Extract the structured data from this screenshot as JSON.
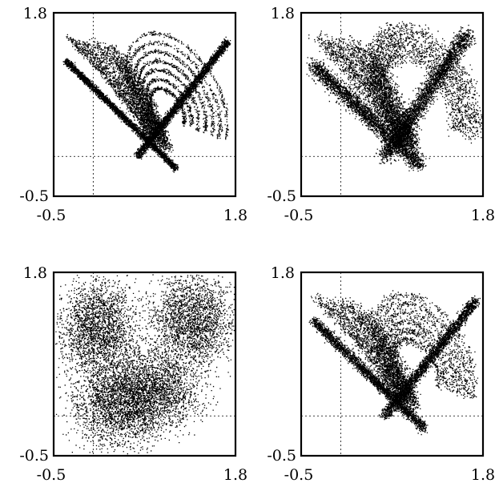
{
  "chart_data": [
    {
      "type": "scatter",
      "point_color": "#000000",
      "xlim": [
        -0.5,
        1.8
      ],
      "ylim": [
        -0.5,
        1.8
      ],
      "x_tick_labels": [
        "-0.5",
        "1.8"
      ],
      "y_tick_labels": [
        "-0.5",
        "1.8"
      ],
      "reference_lines": {
        "x": 0.0,
        "y": 0.0
      },
      "grid": false,
      "description": "tightly banded attractor",
      "structures": [
        {
          "kind": "diagonal_band",
          "from": [
            0.55,
            0.0
          ],
          "to": [
            1.7,
            1.45
          ]
        },
        {
          "kind": "loops",
          "center": [
            1.05,
            0.75
          ],
          "rx_start": 0.52,
          "ry_start": 0.88,
          "count": 7
        },
        {
          "kind": "fingers",
          "tops": [
            [
              -0.32,
              1.5
            ],
            [
              -0.15,
              1.45
            ],
            [
              0.02,
              1.45
            ],
            [
              0.18,
              1.4
            ],
            [
              0.32,
              1.25
            ]
          ],
          "bottom": [
            0.85,
            0.2
          ]
        },
        {
          "kind": "crossing_band",
          "from": [
            -0.35,
            1.2
          ],
          "to": [
            1.05,
            -0.15
          ]
        }
      ]
    },
    {
      "type": "scatter",
      "point_color": "#000000",
      "xlim": [
        -0.5,
        1.8
      ],
      "ylim": [
        -0.5,
        1.8
      ],
      "x_tick_labels": [
        "-0.5",
        "1.8"
      ],
      "y_tick_labels": [
        "-0.5",
        "1.8"
      ],
      "reference_lines": {
        "x": 0.0,
        "y": 0.0
      },
      "grid": false,
      "description": "moderately noisy attractor",
      "structures": [
        {
          "kind": "diagonal_band",
          "from": [
            0.55,
            0.0
          ],
          "to": [
            1.6,
            1.55
          ]
        },
        {
          "kind": "loops",
          "center": [
            1.05,
            0.8
          ],
          "rx_start": 0.55,
          "ry_start": 0.9,
          "count": 4
        },
        {
          "kind": "fingers",
          "tops": [
            [
              -0.3,
              1.5
            ],
            [
              -0.1,
              1.45
            ],
            [
              0.1,
              1.45
            ],
            [
              0.28,
              1.35
            ]
          ],
          "bottom": [
            0.85,
            0.2
          ]
        },
        {
          "kind": "crossing_band",
          "from": [
            -0.35,
            1.15
          ],
          "to": [
            1.0,
            -0.1
          ]
        }
      ]
    },
    {
      "type": "scatter",
      "point_color": "#000000",
      "xlim": [
        -0.5,
        1.8
      ],
      "ylim": [
        -0.5,
        1.8
      ],
      "x_tick_labels": [
        "-0.5",
        "1.8"
      ],
      "y_tick_labels": [
        "-0.5",
        "1.8"
      ],
      "reference_lines": {
        "x": 0.0,
        "y": 0.0
      },
      "grid": false,
      "description": "heavily noisy attractor",
      "structures": [
        {
          "kind": "blob",
          "center": [
            0.05,
            1.1
          ],
          "rx": 0.28,
          "ry": 0.42
        },
        {
          "kind": "blob",
          "center": [
            0.75,
            0.35
          ],
          "rx": 0.45,
          "ry": 0.35
        },
        {
          "kind": "blob",
          "center": [
            1.25,
            1.2
          ],
          "rx": 0.35,
          "ry": 0.4
        },
        {
          "kind": "blob",
          "center": [
            0.3,
            0.15
          ],
          "rx": 0.45,
          "ry": 0.35
        }
      ]
    },
    {
      "type": "scatter",
      "point_color": "#000000",
      "xlim": [
        -0.5,
        1.8
      ],
      "ylim": [
        -0.5,
        1.8
      ],
      "x_tick_labels": [
        "-0.5",
        "1.8"
      ],
      "y_tick_labels": [
        "-0.5",
        "1.8"
      ],
      "reference_lines": {
        "x": 0.0,
        "y": 0.0
      },
      "grid": false,
      "description": "lightly noisy attractor",
      "structures": [
        {
          "kind": "diagonal_band",
          "from": [
            0.55,
            0.0
          ],
          "to": [
            1.7,
            1.45
          ]
        },
        {
          "kind": "loops",
          "center": [
            1.05,
            0.75
          ],
          "rx_start": 0.52,
          "ry_start": 0.85,
          "count": 6
        },
        {
          "kind": "fingers",
          "tops": [
            [
              -0.32,
              1.5
            ],
            [
              -0.15,
              1.45
            ],
            [
              0.02,
              1.45
            ],
            [
              0.18,
              1.4
            ],
            [
              0.3,
              1.3
            ]
          ],
          "bottom": [
            0.85,
            0.2
          ]
        },
        {
          "kind": "crossing_band",
          "from": [
            -0.35,
            1.2
          ],
          "to": [
            1.05,
            -0.15
          ]
        }
      ]
    }
  ]
}
